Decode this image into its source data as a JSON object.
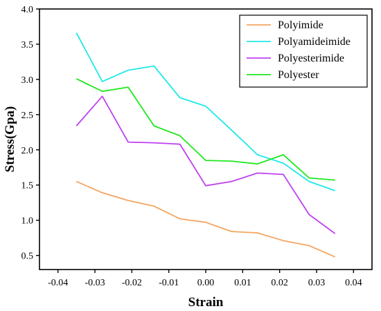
{
  "chart_data": {
    "type": "line",
    "title": "",
    "xlabel": "Strain",
    "ylabel": "Stress(Gpa)",
    "xlim": [
      -0.045,
      0.045
    ],
    "ylim": [
      0.3,
      4.0
    ],
    "xticks": [
      -0.04,
      -0.03,
      -0.02,
      -0.01,
      0.0,
      0.01,
      0.02,
      0.03,
      0.04
    ],
    "xtick_labels": [
      "-0.04",
      "-0.03",
      "-0.02",
      "-0.01",
      "0.00",
      "0.01",
      "0.02",
      "0.03",
      "0.04"
    ],
    "yticks": [
      0.5,
      1.0,
      1.5,
      2.0,
      2.5,
      3.0,
      3.5,
      4.0
    ],
    "ytick_labels": [
      "0.5",
      "1.0",
      "1.5",
      "2.0",
      "2.5",
      "3.0",
      "3.5",
      "4.0"
    ],
    "grid": false,
    "legend_position": "top-right",
    "x": [
      -0.035,
      -0.028,
      -0.021,
      -0.014,
      -0.007,
      0.0,
      0.007,
      0.014,
      0.021,
      0.028,
      0.035
    ],
    "series": [
      {
        "name": "Polyimide",
        "color": "#f4a460",
        "values": [
          1.55,
          1.39,
          1.28,
          1.2,
          1.02,
          0.97,
          0.84,
          0.82,
          0.71,
          0.64,
          0.48
        ]
      },
      {
        "name": "Polyamideimide",
        "color": "#1ee8e8",
        "values": [
          3.66,
          2.97,
          3.13,
          3.19,
          2.74,
          2.62,
          2.28,
          1.93,
          1.81,
          1.55,
          1.42
        ]
      },
      {
        "name": "Polyesterimide",
        "color": "#bf40f2",
        "values": [
          2.34,
          2.76,
          2.11,
          2.1,
          2.08,
          1.49,
          1.55,
          1.67,
          1.65,
          1.08,
          0.81
        ]
      },
      {
        "name": "Polyester",
        "color": "#1ee81e",
        "values": [
          3.01,
          2.83,
          2.89,
          2.34,
          2.2,
          1.85,
          1.84,
          1.8,
          1.93,
          1.6,
          1.57
        ]
      }
    ]
  }
}
